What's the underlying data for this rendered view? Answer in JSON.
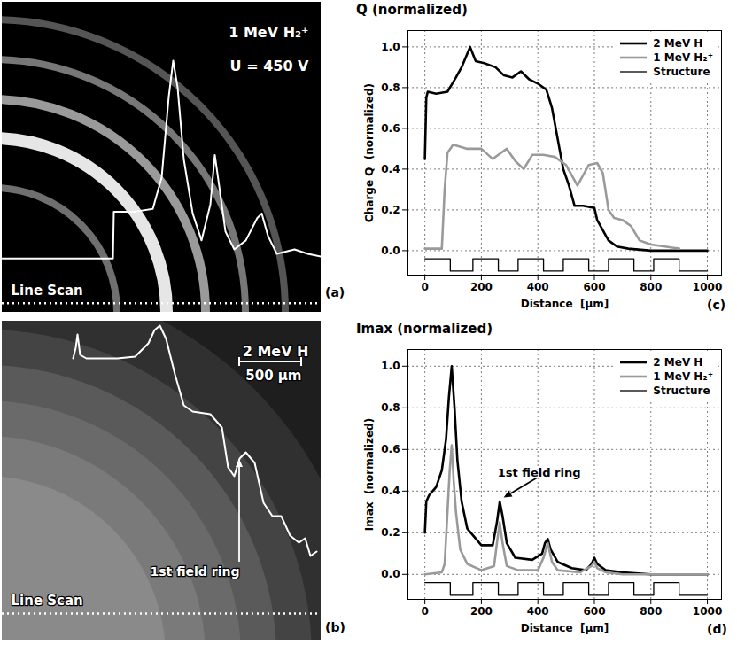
{
  "chart_data": [
    {
      "type": "line",
      "panel_label": "(a)",
      "labels": [
        "1 MeV H₂⁺",
        "U = 450 V"
      ],
      "line_scan": {
        "label": "Line Scan",
        "y": 10,
        "line_style": "dotted"
      },
      "tick_labels": false,
      "xlim": [
        0,
        360
      ],
      "ylim": [
        0,
        345
      ],
      "color": "#ffffff",
      "x": [
        0,
        125,
        126,
        150,
        170,
        180,
        188,
        193,
        198,
        205,
        215,
        225,
        235,
        240,
        245,
        252,
        262,
        275,
        288,
        293,
        300,
        310,
        330,
        345,
        360
      ],
      "values": [
        60,
        60,
        112,
        112,
        115,
        150,
        240,
        280,
        250,
        170,
        110,
        80,
        120,
        175,
        140,
        90,
        70,
        80,
        105,
        110,
        85,
        65,
        70,
        65,
        62
      ]
    },
    {
      "type": "line",
      "panel_label": "(b)",
      "labels": [
        "2 MeV H"
      ],
      "scale_bar": "500 µm",
      "annotation": {
        "text": "1st field ring",
        "x": 268,
        "y": 212
      },
      "line_scan": {
        "label": "Line Scan",
        "y": 30,
        "line_style": "dotted"
      },
      "tick_labels": false,
      "xlim": [
        0,
        360
      ],
      "ylim": [
        0,
        360
      ],
      "color": "#ffffff",
      "x": [
        80,
        83,
        85,
        88,
        95,
        130,
        150,
        165,
        172,
        178,
        185,
        195,
        205,
        215,
        235,
        248,
        255,
        262,
        268,
        275,
        285,
        295,
        305,
        315,
        325,
        335,
        342,
        348,
        355
      ],
      "values": [
        318,
        330,
        345,
        322,
        318,
        318,
        320,
        335,
        350,
        355,
        340,
        300,
        265,
        258,
        255,
        240,
        195,
        185,
        205,
        212,
        200,
        155,
        140,
        140,
        118,
        110,
        115,
        95,
        100
      ]
    },
    {
      "type": "line",
      "panel_label": "(c)",
      "title": "Q (normalized)",
      "y_label": "Charge Q  (normalized)",
      "x_label": "Distance  [µm]",
      "xlim": [
        -60,
        1050
      ],
      "ylim": [
        -0.12,
        1.08
      ],
      "xticks": [
        0,
        200,
        400,
        600,
        800,
        1000
      ],
      "yticks": [
        {
          "value": 0,
          "label": "0.0"
        },
        {
          "value": 0.2,
          "label": "0.2"
        },
        {
          "value": 0.4,
          "label": "0.4"
        },
        {
          "value": 0.6,
          "label": "0.6"
        },
        {
          "value": 0.8,
          "label": "0.8"
        },
        {
          "value": 1,
          "label": "1.0"
        }
      ],
      "grid": true,
      "legend": "top-right",
      "series": [
        {
          "name": "2 MeV H",
          "color": "#000000",
          "line_style": "thick",
          "x": [
            0,
            5,
            10,
            40,
            80,
            110,
            130,
            160,
            180,
            210,
            250,
            280,
            310,
            340,
            370,
            400,
            430,
            450,
            470,
            490,
            510,
            530,
            560,
            600,
            610,
            630,
            650,
            680,
            720,
            800,
            900,
            1000
          ],
          "values": [
            0.45,
            0.75,
            0.78,
            0.77,
            0.78,
            0.85,
            0.9,
            1.0,
            0.93,
            0.92,
            0.9,
            0.86,
            0.85,
            0.88,
            0.84,
            0.82,
            0.79,
            0.7,
            0.55,
            0.4,
            0.32,
            0.22,
            0.22,
            0.21,
            0.15,
            0.1,
            0.05,
            0.02,
            0.01,
            0,
            0,
            0
          ]
        },
        {
          "name": "1 MeV H₂⁺",
          "color": "#9a9a9a",
          "line_style": "thick",
          "x": [
            0,
            60,
            70,
            80,
            100,
            150,
            200,
            240,
            260,
            290,
            320,
            350,
            380,
            420,
            460,
            500,
            540,
            580,
            610,
            630,
            650,
            670,
            700,
            730,
            760,
            800,
            850,
            900
          ],
          "values": [
            0.01,
            0.01,
            0.3,
            0.48,
            0.52,
            0.5,
            0.5,
            0.45,
            0.47,
            0.5,
            0.44,
            0.4,
            0.47,
            0.47,
            0.46,
            0.42,
            0.32,
            0.42,
            0.43,
            0.38,
            0.2,
            0.16,
            0.15,
            0.12,
            0.05,
            0.03,
            0.02,
            0.01
          ]
        },
        {
          "name": "Structure",
          "color": "#000000",
          "line_style": "thin",
          "x": [
            0,
            90,
            90,
            170,
            170,
            260,
            260,
            330,
            330,
            420,
            420,
            490,
            490,
            580,
            580,
            650,
            650,
            740,
            740,
            810,
            810,
            900,
            900,
            1000
          ],
          "values": [
            -0.04,
            -0.04,
            -0.1,
            -0.1,
            -0.04,
            -0.04,
            -0.1,
            -0.1,
            -0.04,
            -0.04,
            -0.1,
            -0.1,
            -0.04,
            -0.04,
            -0.1,
            -0.1,
            -0.04,
            -0.04,
            -0.1,
            -0.1,
            -0.04,
            -0.04,
            -0.1,
            -0.1
          ]
        }
      ]
    },
    {
      "type": "line",
      "panel_label": "(d)",
      "title": "Imax (normalized)",
      "y_label": "Imax  (normalized)",
      "x_label": "Distance  [µm]",
      "xlim": [
        -60,
        1050
      ],
      "ylim": [
        -0.12,
        1.08
      ],
      "xticks": [
        0,
        200,
        400,
        600,
        800,
        1000
      ],
      "yticks": [
        {
          "value": 0,
          "label": "0.0"
        },
        {
          "value": 0.2,
          "label": "0.2"
        },
        {
          "value": 0.4,
          "label": "0.4"
        },
        {
          "value": 0.6,
          "label": "0.6"
        },
        {
          "value": 0.8,
          "label": "0.8"
        },
        {
          "value": 1,
          "label": "1.0"
        }
      ],
      "grid": true,
      "legend": "top-right",
      "annotation": {
        "text": "1st field ring",
        "x": 265,
        "y": 0.35
      },
      "series": [
        {
          "name": "2 MeV H",
          "color": "#000000",
          "line_style": "thick",
          "x": [
            0,
            5,
            15,
            40,
            60,
            75,
            85,
            95,
            105,
            115,
            130,
            150,
            200,
            240,
            255,
            265,
            275,
            290,
            320,
            380,
            415,
            425,
            435,
            445,
            470,
            520,
            570,
            590,
            600,
            610,
            640,
            700,
            800,
            1000
          ],
          "values": [
            0.2,
            0.35,
            0.38,
            0.42,
            0.5,
            0.65,
            0.85,
            1.0,
            0.8,
            0.55,
            0.35,
            0.22,
            0.14,
            0.14,
            0.25,
            0.35,
            0.28,
            0.15,
            0.08,
            0.07,
            0.1,
            0.15,
            0.17,
            0.12,
            0.06,
            0.03,
            0.02,
            0.05,
            0.08,
            0.05,
            0.02,
            0.01,
            0,
            0
          ]
        },
        {
          "name": "1 MeV H₂⁺",
          "color": "#9a9a9a",
          "line_style": "thick",
          "x": [
            0,
            60,
            70,
            80,
            88,
            95,
            102,
            110,
            125,
            150,
            200,
            245,
            255,
            265,
            275,
            290,
            330,
            400,
            420,
            435,
            450,
            470,
            550,
            590,
            600,
            610,
            640,
            700,
            1000
          ],
          "values": [
            0,
            0.01,
            0.05,
            0.3,
            0.5,
            0.62,
            0.45,
            0.3,
            0.12,
            0.05,
            0.02,
            0.04,
            0.15,
            0.25,
            0.15,
            0.04,
            0.02,
            0.02,
            0.08,
            0.15,
            0.06,
            0.02,
            0.01,
            0.04,
            0.06,
            0.03,
            0.01,
            0,
            0
          ]
        },
        {
          "name": "Structure",
          "color": "#000000",
          "line_style": "thin",
          "x": [
            0,
            90,
            90,
            170,
            170,
            260,
            260,
            330,
            330,
            420,
            420,
            490,
            490,
            580,
            580,
            650,
            650,
            740,
            740,
            810,
            810,
            900,
            900,
            1000
          ],
          "values": [
            -0.04,
            -0.04,
            -0.1,
            -0.1,
            -0.04,
            -0.04,
            -0.1,
            -0.1,
            -0.04,
            -0.04,
            -0.1,
            -0.1,
            -0.04,
            -0.04,
            -0.1,
            -0.1,
            -0.04,
            -0.04,
            -0.1,
            -0.1,
            -0.04,
            -0.04,
            -0.1,
            -0.1
          ]
        }
      ]
    }
  ]
}
